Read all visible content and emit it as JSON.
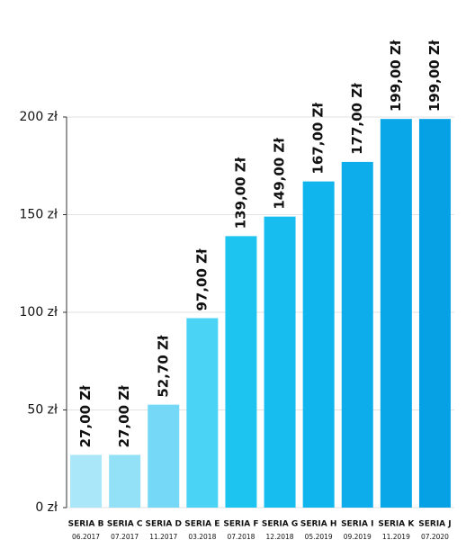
{
  "chart_data": {
    "type": "bar",
    "categories": [
      "SERIA B",
      "SERIA C",
      "SERIA D",
      "SERIA E",
      "SERIA F",
      "SERIA G",
      "SERIA H",
      "SERIA I",
      "SERIA K",
      "SERIA J"
    ],
    "category_dates": [
      "06.2017",
      "07.2017",
      "11.2017",
      "03.2018",
      "07.2018",
      "12.2018",
      "05.2019",
      "09.2019",
      "11.2019",
      "07.2020"
    ],
    "values": [
      27,
      27,
      52.7,
      97,
      139,
      149,
      167,
      177,
      199,
      199
    ],
    "value_labels": [
      "27,00 Zł",
      "27,00 Zł",
      "52,70 Zł",
      "97,00 Zł",
      "139,00 Zł",
      "149,00 Zł",
      "167,00 Zł",
      "177,00 Zł",
      "199,00 Zł",
      "199,00 Zł"
    ],
    "colors": [
      "#aae7f8",
      "#92e1f7",
      "#74d8f6",
      "#4bd3f5",
      "#1ec4f0",
      "#16bdee",
      "#0fb5ec",
      "#0cadea",
      "#09a7e8",
      "#05a1e4"
    ],
    "ylim": [
      0,
      200
    ],
    "yticks": [
      {
        "value": 0,
        "label": "0 zł"
      },
      {
        "value": 50,
        "label": "50 zł"
      },
      {
        "value": 100,
        "label": "100 zł"
      },
      {
        "value": 150,
        "label": "150 zł"
      },
      {
        "value": 200,
        "label": "200 zł"
      }
    ],
    "grid": true
  }
}
